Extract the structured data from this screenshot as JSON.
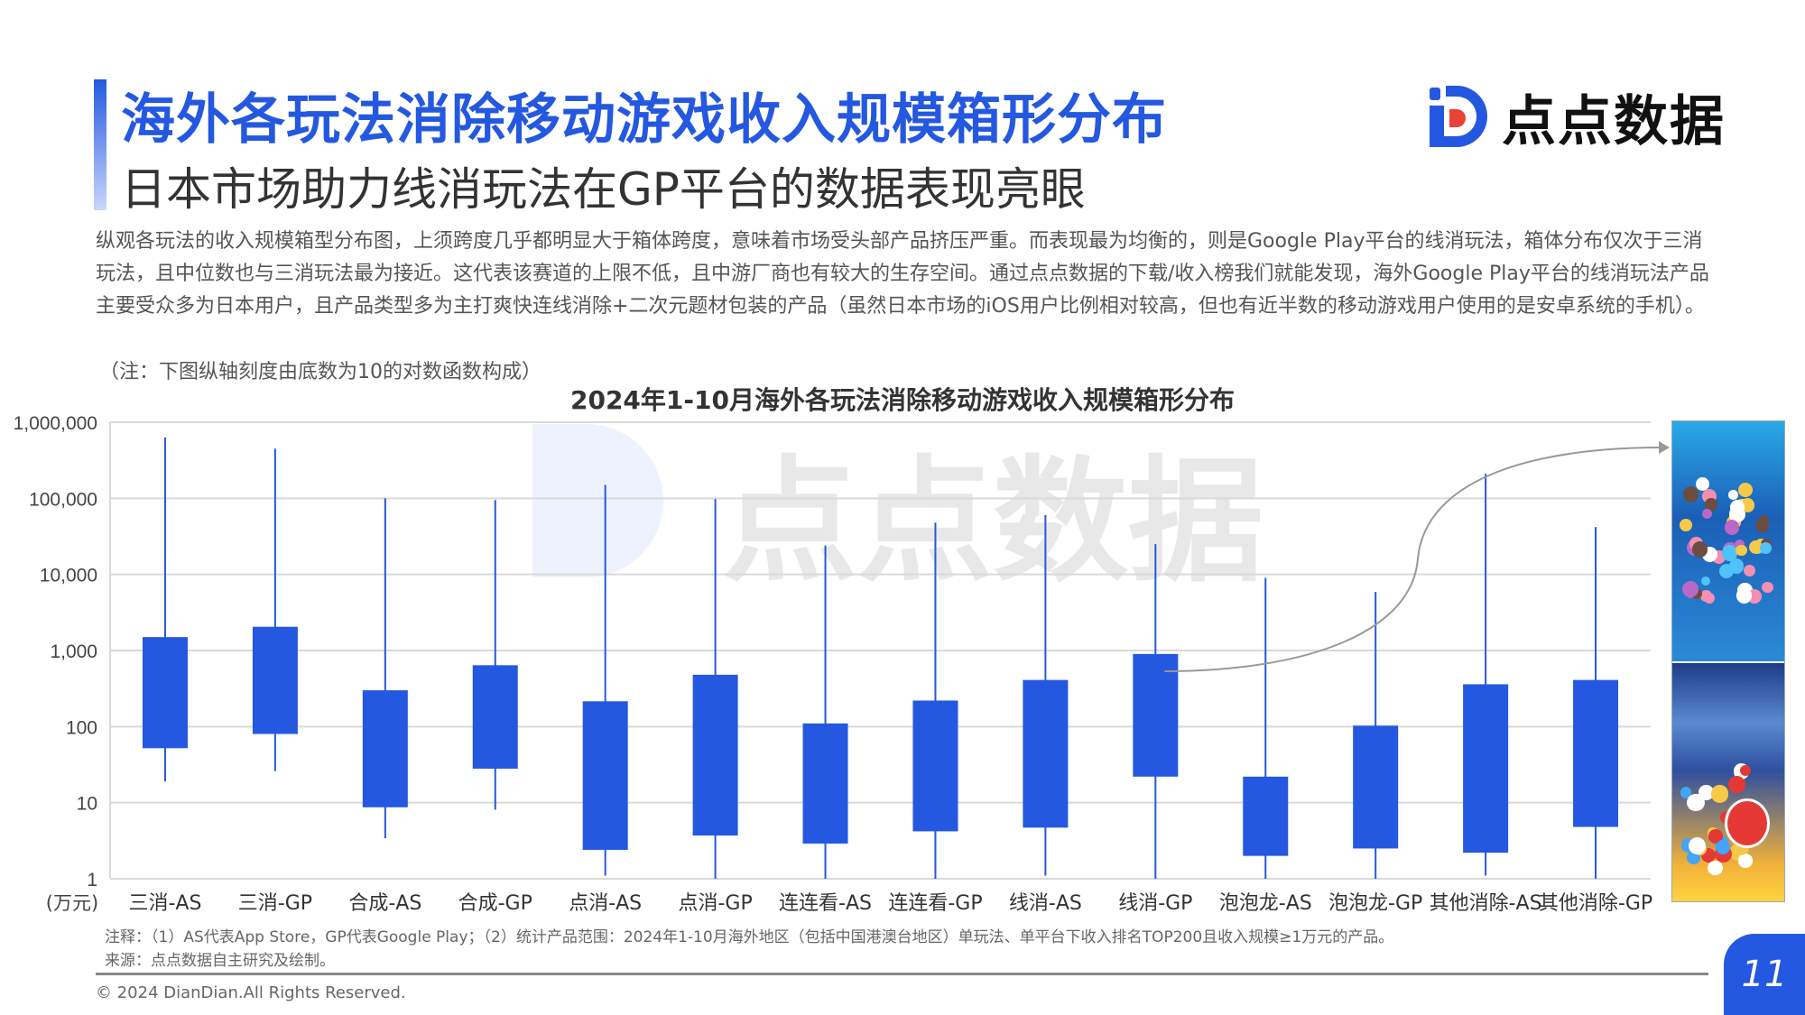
{
  "header": {
    "title": "海外各玩法消除移动游戏收入规模箱形分布",
    "subtitle": "日本市场助力线消玩法在GP平台的数据表现亮眼",
    "logo_text": "点点数据"
  },
  "body": {
    "paragraph": "纵观各玩法的收入规模箱型分布图，上须跨度几乎都明显大于箱体跨度，意味着市场受头部产品挤压严重。而表现最为均衡的，则是Google Play平台的线消玩法，箱体分布仅次于三消玩法，且中位数也与三消玩法最为接近。这代表该赛道的上限不低，且中游厂商也有较大的生存空间。通过点点数据的下载/收入榜我们就能发现，海外Google Play平台的线消玩法产品主要受众多为日本用户，且产品类型多为主打爽快连线消除+二次元题材包装的产品（虽然日本市场的iOS用户比例相对较高，但也有近半数的移动游戏用户使用的是安卓系统的手机）。",
    "note": "（注：下图纵轴刻度由底数为10的对数函数构成）"
  },
  "chart_data": {
    "type": "box",
    "title": "2024年1-10月海外各玩法消除移动游戏收入规模箱形分布",
    "ylabel": "(万元)",
    "yscale": "log10",
    "ylim": [
      1,
      1000000
    ],
    "yticks": [
      {
        "v": 1,
        "label": "1"
      },
      {
        "v": 10,
        "label": "10"
      },
      {
        "v": 100,
        "label": "100"
      },
      {
        "v": 1000,
        "label": "1,000"
      },
      {
        "v": 10000,
        "label": "10,000"
      },
      {
        "v": 100000,
        "label": "100,000"
      },
      {
        "v": 1000000,
        "label": "1,000,000"
      }
    ],
    "grid": true,
    "color": "#2458e0",
    "categories": [
      "三消-AS",
      "三消-GP",
      "合成-AS",
      "合成-GP",
      "点消-AS",
      "点消-GP",
      "连连看-AS",
      "连连看-GP",
      "线消-AS",
      "线消-GP",
      "泡泡龙-AS",
      "泡泡龙-GP",
      "其他消除-AS",
      "其他消除-GP"
    ],
    "boxes": [
      {
        "min": 19,
        "q1": 52,
        "q3": 1500,
        "max": 630000
      },
      {
        "min": 26,
        "q1": 80,
        "q3": 2050,
        "max": 450000
      },
      {
        "min": 3.4,
        "q1": 8.7,
        "q3": 300,
        "max": 100000
      },
      {
        "min": 8.1,
        "q1": 28,
        "q3": 640,
        "max": 95000
      },
      {
        "min": 1.1,
        "q1": 2.4,
        "q3": 215,
        "max": 150000
      },
      {
        "min": 1,
        "q1": 3.7,
        "q3": 480,
        "max": 98000
      },
      {
        "min": 1,
        "q1": 2.9,
        "q3": 110,
        "max": 24000
      },
      {
        "min": 1,
        "q1": 4.2,
        "q3": 220,
        "max": 48000
      },
      {
        "min": 1.1,
        "q1": 4.7,
        "q3": 410,
        "max": 60000
      },
      {
        "min": 1,
        "q1": 22,
        "q3": 900,
        "max": 25000
      },
      {
        "min": 1,
        "q1": 2.0,
        "q3": 22,
        "max": 9000
      },
      {
        "min": 1,
        "q1": 2.5,
        "q3": 103,
        "max": 5900
      },
      {
        "min": 1.1,
        "q1": 2.2,
        "q3": 360,
        "max": 210000
      },
      {
        "min": 1,
        "q1": 4.8,
        "q3": 410,
        "max": 42000
      }
    ],
    "watermark": "点点数据"
  },
  "footer": {
    "footnote": "注释：（1）AS代表App Store，GP代表Google Play；（2）统计产品范围：2024年1-10月海外地区（包括中国港澳台地区）单玩法、单平台下收入排名TOP200且收入规模≥1万元的产品。",
    "source": "来源：点点数据自主研究及绘制。",
    "copyright": "© 2024 DianDian.All Rights Reserved.",
    "page": "11"
  }
}
